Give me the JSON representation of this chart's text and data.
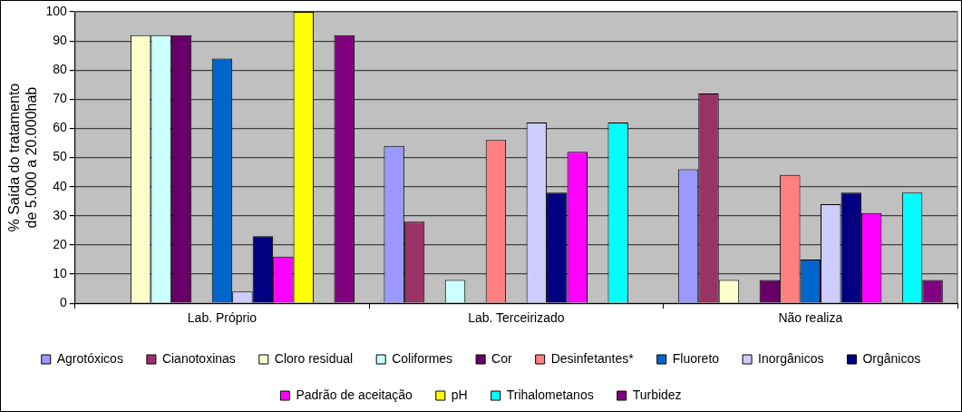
{
  "chart_data": {
    "type": "bar",
    "ylabel": "% Saída do tratamento de 5.000 a 20.000hab",
    "categories": [
      "Lab. Próprio",
      "Lab. Terceirizado",
      "Não realiza"
    ],
    "ylim": [
      0,
      100
    ],
    "yticks": [
      0,
      10,
      20,
      30,
      40,
      50,
      60,
      70,
      80,
      90,
      100
    ],
    "grid": "y",
    "legend": "bottom",
    "series": [
      {
        "name": "Agrotóxicos",
        "color": "#9999ff",
        "values": [
          0,
          54,
          46
        ]
      },
      {
        "name": "Cianotoxinas",
        "color": "#993366",
        "values": [
          0,
          28,
          72
        ]
      },
      {
        "name": "Cloro residual",
        "color": "#ffffcc",
        "values": [
          92,
          0,
          8
        ]
      },
      {
        "name": "Coliformes",
        "color": "#ccffff",
        "values": [
          92,
          8,
          0
        ]
      },
      {
        "name": "Cor",
        "color": "#660066",
        "values": [
          92,
          0,
          8
        ]
      },
      {
        "name": "Desinfetantes*",
        "color": "#ff8080",
        "values": [
          0,
          56,
          44
        ]
      },
      {
        "name": "Fluoreto",
        "color": "#0066cc",
        "values": [
          84,
          0,
          15
        ]
      },
      {
        "name": "Inorgânicos",
        "color": "#ccccff",
        "values": [
          4,
          62,
          34
        ]
      },
      {
        "name": "Orgânicos",
        "color": "#000080",
        "values": [
          23,
          38,
          38
        ]
      },
      {
        "name": "Padrão de aceitação",
        "color": "#ff00ff",
        "values": [
          16,
          52,
          31
        ]
      },
      {
        "name": "pH",
        "color": "#ffff00",
        "values": [
          100,
          0,
          0
        ]
      },
      {
        "name": "Trihalometanos",
        "color": "#00ffff",
        "values": [
          0,
          62,
          38
        ]
      },
      {
        "name": "Turbidez",
        "color": "#800080",
        "values": [
          92,
          0,
          8
        ]
      }
    ]
  }
}
